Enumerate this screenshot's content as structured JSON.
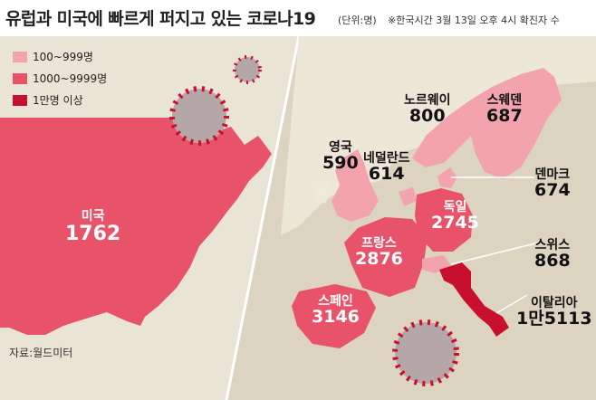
{
  "title": "유럽과 미국에 빠르게 퍼지고 있는 코로나19",
  "unit": "(단위:명)",
  "note": "※한국시간 3월 13일 오후 4시 확진자 수",
  "legend": [
    {
      "label": "100~999명",
      "color": "#f2a3ad"
    },
    {
      "label": "1000~9999명",
      "color": "#e8536a"
    },
    {
      "label": "1만명 이상",
      "color": "#c8102e"
    }
  ],
  "countries": {
    "us": {
      "name": "미국",
      "value": "1762"
    },
    "norway": {
      "name": "노르웨이",
      "value": "800"
    },
    "sweden": {
      "name": "스웨덴",
      "value": "687"
    },
    "uk": {
      "name": "영국",
      "value": "590"
    },
    "netherlands": {
      "name": "네덜란드",
      "value": "614"
    },
    "denmark": {
      "name": "덴마크",
      "value": "674"
    },
    "germany": {
      "name": "독일",
      "value": "2745"
    },
    "france": {
      "name": "프랑스",
      "value": "2876"
    },
    "switzerland": {
      "name": "스위스",
      "value": "868"
    },
    "spain": {
      "name": "스페인",
      "value": "3146"
    },
    "italy": {
      "name": "이탈리아",
      "value": "1만5113"
    }
  },
  "source": "자료:월드미터"
}
